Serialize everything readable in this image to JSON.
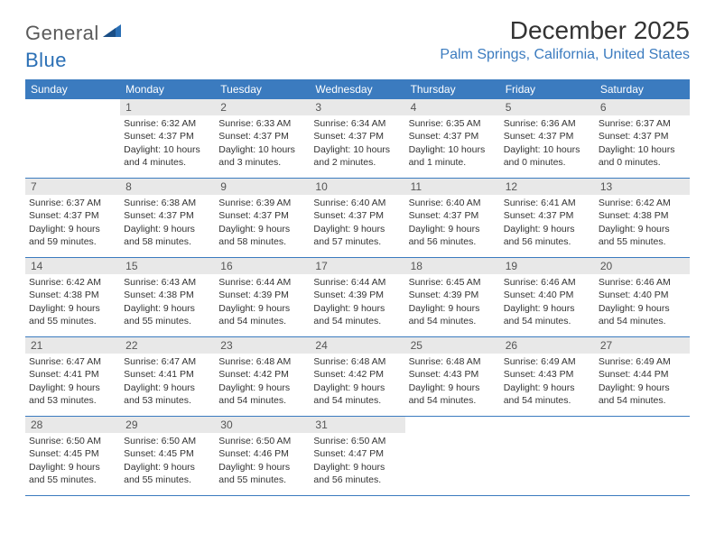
{
  "brand": {
    "part1": "General",
    "part2": "Blue"
  },
  "title": "December 2025",
  "location": "Palm Springs, California, United States",
  "header_bg": "#3b7bbf",
  "accent": "#3b7bbf",
  "daynum_bg": "#e8e8e8",
  "days_of_week": [
    "Sunday",
    "Monday",
    "Tuesday",
    "Wednesday",
    "Thursday",
    "Friday",
    "Saturday"
  ],
  "first_weekday_offset": 1,
  "cells": [
    {
      "day": 1,
      "sunrise": "6:32 AM",
      "sunset": "4:37 PM",
      "daylight": "10 hours and 4 minutes."
    },
    {
      "day": 2,
      "sunrise": "6:33 AM",
      "sunset": "4:37 PM",
      "daylight": "10 hours and 3 minutes."
    },
    {
      "day": 3,
      "sunrise": "6:34 AM",
      "sunset": "4:37 PM",
      "daylight": "10 hours and 2 minutes."
    },
    {
      "day": 4,
      "sunrise": "6:35 AM",
      "sunset": "4:37 PM",
      "daylight": "10 hours and 1 minute."
    },
    {
      "day": 5,
      "sunrise": "6:36 AM",
      "sunset": "4:37 PM",
      "daylight": "10 hours and 0 minutes."
    },
    {
      "day": 6,
      "sunrise": "6:37 AM",
      "sunset": "4:37 PM",
      "daylight": "10 hours and 0 minutes."
    },
    {
      "day": 7,
      "sunrise": "6:37 AM",
      "sunset": "4:37 PM",
      "daylight": "9 hours and 59 minutes."
    },
    {
      "day": 8,
      "sunrise": "6:38 AM",
      "sunset": "4:37 PM",
      "daylight": "9 hours and 58 minutes."
    },
    {
      "day": 9,
      "sunrise": "6:39 AM",
      "sunset": "4:37 PM",
      "daylight": "9 hours and 58 minutes."
    },
    {
      "day": 10,
      "sunrise": "6:40 AM",
      "sunset": "4:37 PM",
      "daylight": "9 hours and 57 minutes."
    },
    {
      "day": 11,
      "sunrise": "6:40 AM",
      "sunset": "4:37 PM",
      "daylight": "9 hours and 56 minutes."
    },
    {
      "day": 12,
      "sunrise": "6:41 AM",
      "sunset": "4:37 PM",
      "daylight": "9 hours and 56 minutes."
    },
    {
      "day": 13,
      "sunrise": "6:42 AM",
      "sunset": "4:38 PM",
      "daylight": "9 hours and 55 minutes."
    },
    {
      "day": 14,
      "sunrise": "6:42 AM",
      "sunset": "4:38 PM",
      "daylight": "9 hours and 55 minutes."
    },
    {
      "day": 15,
      "sunrise": "6:43 AM",
      "sunset": "4:38 PM",
      "daylight": "9 hours and 55 minutes."
    },
    {
      "day": 16,
      "sunrise": "6:44 AM",
      "sunset": "4:39 PM",
      "daylight": "9 hours and 54 minutes."
    },
    {
      "day": 17,
      "sunrise": "6:44 AM",
      "sunset": "4:39 PM",
      "daylight": "9 hours and 54 minutes."
    },
    {
      "day": 18,
      "sunrise": "6:45 AM",
      "sunset": "4:39 PM",
      "daylight": "9 hours and 54 minutes."
    },
    {
      "day": 19,
      "sunrise": "6:46 AM",
      "sunset": "4:40 PM",
      "daylight": "9 hours and 54 minutes."
    },
    {
      "day": 20,
      "sunrise": "6:46 AM",
      "sunset": "4:40 PM",
      "daylight": "9 hours and 54 minutes."
    },
    {
      "day": 21,
      "sunrise": "6:47 AM",
      "sunset": "4:41 PM",
      "daylight": "9 hours and 53 minutes."
    },
    {
      "day": 22,
      "sunrise": "6:47 AM",
      "sunset": "4:41 PM",
      "daylight": "9 hours and 53 minutes."
    },
    {
      "day": 23,
      "sunrise": "6:48 AM",
      "sunset": "4:42 PM",
      "daylight": "9 hours and 54 minutes."
    },
    {
      "day": 24,
      "sunrise": "6:48 AM",
      "sunset": "4:42 PM",
      "daylight": "9 hours and 54 minutes."
    },
    {
      "day": 25,
      "sunrise": "6:48 AM",
      "sunset": "4:43 PM",
      "daylight": "9 hours and 54 minutes."
    },
    {
      "day": 26,
      "sunrise": "6:49 AM",
      "sunset": "4:43 PM",
      "daylight": "9 hours and 54 minutes."
    },
    {
      "day": 27,
      "sunrise": "6:49 AM",
      "sunset": "4:44 PM",
      "daylight": "9 hours and 54 minutes."
    },
    {
      "day": 28,
      "sunrise": "6:50 AM",
      "sunset": "4:45 PM",
      "daylight": "9 hours and 55 minutes."
    },
    {
      "day": 29,
      "sunrise": "6:50 AM",
      "sunset": "4:45 PM",
      "daylight": "9 hours and 55 minutes."
    },
    {
      "day": 30,
      "sunrise": "6:50 AM",
      "sunset": "4:46 PM",
      "daylight": "9 hours and 55 minutes."
    },
    {
      "day": 31,
      "sunrise": "6:50 AM",
      "sunset": "4:47 PM",
      "daylight": "9 hours and 56 minutes."
    }
  ],
  "labels": {
    "sunrise": "Sunrise:",
    "sunset": "Sunset:",
    "daylight": "Daylight:"
  }
}
